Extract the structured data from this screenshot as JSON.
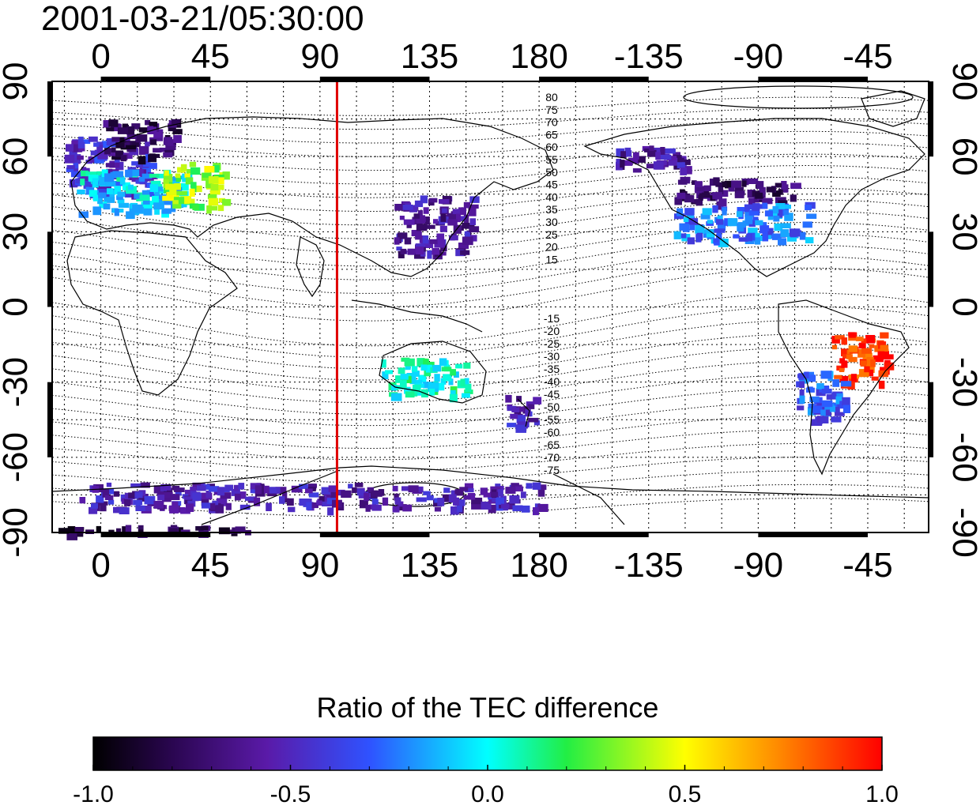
{
  "title": "2001-03-21/05:30:00",
  "map": {
    "lon_ticks_top": [
      "0",
      "45",
      "90",
      "135",
      "180",
      "-135",
      "-90",
      "-45"
    ],
    "lon_ticks_bottom": [
      "0",
      "45",
      "90",
      "135",
      "180",
      "-135",
      "-90",
      "-45"
    ],
    "lat_ticks_left": [
      "90",
      "60",
      "30",
      "0",
      "-30",
      "-60",
      "-90"
    ],
    "lat_ticks_right": [
      "90",
      "60",
      "30",
      "0",
      "-30",
      "-60",
      "-90"
    ],
    "contour_labels_north": [
      "80",
      "75",
      "70",
      "65",
      "60",
      "55",
      "50",
      "45",
      "40",
      "35",
      "30",
      "25",
      "20",
      "15"
    ],
    "contour_labels_south": [
      "-15",
      "-20",
      "-25",
      "-30",
      "-35",
      "-40",
      "-45",
      "-50",
      "-55",
      "-60",
      "-65",
      "-70",
      "-75"
    ],
    "meridian_marker_lon": 97,
    "colors": {
      "meridian_marker": "#e00000",
      "frame": "#000000"
    }
  },
  "colorbar": {
    "title": "Ratio of the TEC difference",
    "ticks": [
      "-1.0",
      "-0.5",
      "0.0",
      "0.5",
      "1.0"
    ],
    "range": [
      -1.0,
      1.0
    ]
  },
  "chart_data": {
    "type": "heatmap",
    "title": "2001-03-21/05:30:00",
    "xlabel": "",
    "ylabel": "",
    "xlim": [
      -20,
      340
    ],
    "ylim": [
      -90,
      90
    ],
    "colorbar_label": "Ratio of the TEC difference",
    "colorbar_range": [
      -1.0,
      1.0
    ],
    "regions": [
      {
        "lon_range": [
          -15,
          20
        ],
        "lat_range": [
          45,
          68
        ],
        "value": -0.45
      },
      {
        "lon_range": [
          0,
          30
        ],
        "lat_range": [
          60,
          75
        ],
        "value": -0.75
      },
      {
        "lon_range": [
          -10,
          35
        ],
        "lat_range": [
          38,
          55
        ],
        "value": -0.05
      },
      {
        "lon_range": [
          25,
          50
        ],
        "lat_range": [
          40,
          58
        ],
        "value": 0.35
      },
      {
        "lon_range": [
          120,
          152
        ],
        "lat_range": [
          22,
          45
        ],
        "value": -0.6
      },
      {
        "lon_range": [
          -125,
          -75
        ],
        "lat_range": [
          42,
          52
        ],
        "value": -0.75
      },
      {
        "lon_range": [
          -125,
          -70
        ],
        "lat_range": [
          27,
          42
        ],
        "value": -0.25
      },
      {
        "lon_range": [
          -150,
          -120
        ],
        "lat_range": [
          55,
          65
        ],
        "value": -0.6
      },
      {
        "lon_range": [
          -60,
          -38
        ],
        "lat_range": [
          -30,
          -10
        ],
        "value": 0.9
      },
      {
        "lon_range": [
          -75,
          -55
        ],
        "lat_range": [
          -45,
          -25
        ],
        "value": -0.3
      },
      {
        "lon_range": [
          115,
          150
        ],
        "lat_range": [
          -35,
          -20
        ],
        "value": 0.05
      },
      {
        "lon_range": [
          165,
          178
        ],
        "lat_range": [
          -48,
          -35
        ],
        "value": -0.55
      },
      {
        "lon_range": [
          -10,
          180
        ],
        "lat_range": [
          -80,
          -70
        ],
        "value": -0.55
      },
      {
        "lon_range": [
          -20,
          60
        ],
        "lat_range": [
          -90,
          -87
        ],
        "value": -0.8
      }
    ]
  }
}
